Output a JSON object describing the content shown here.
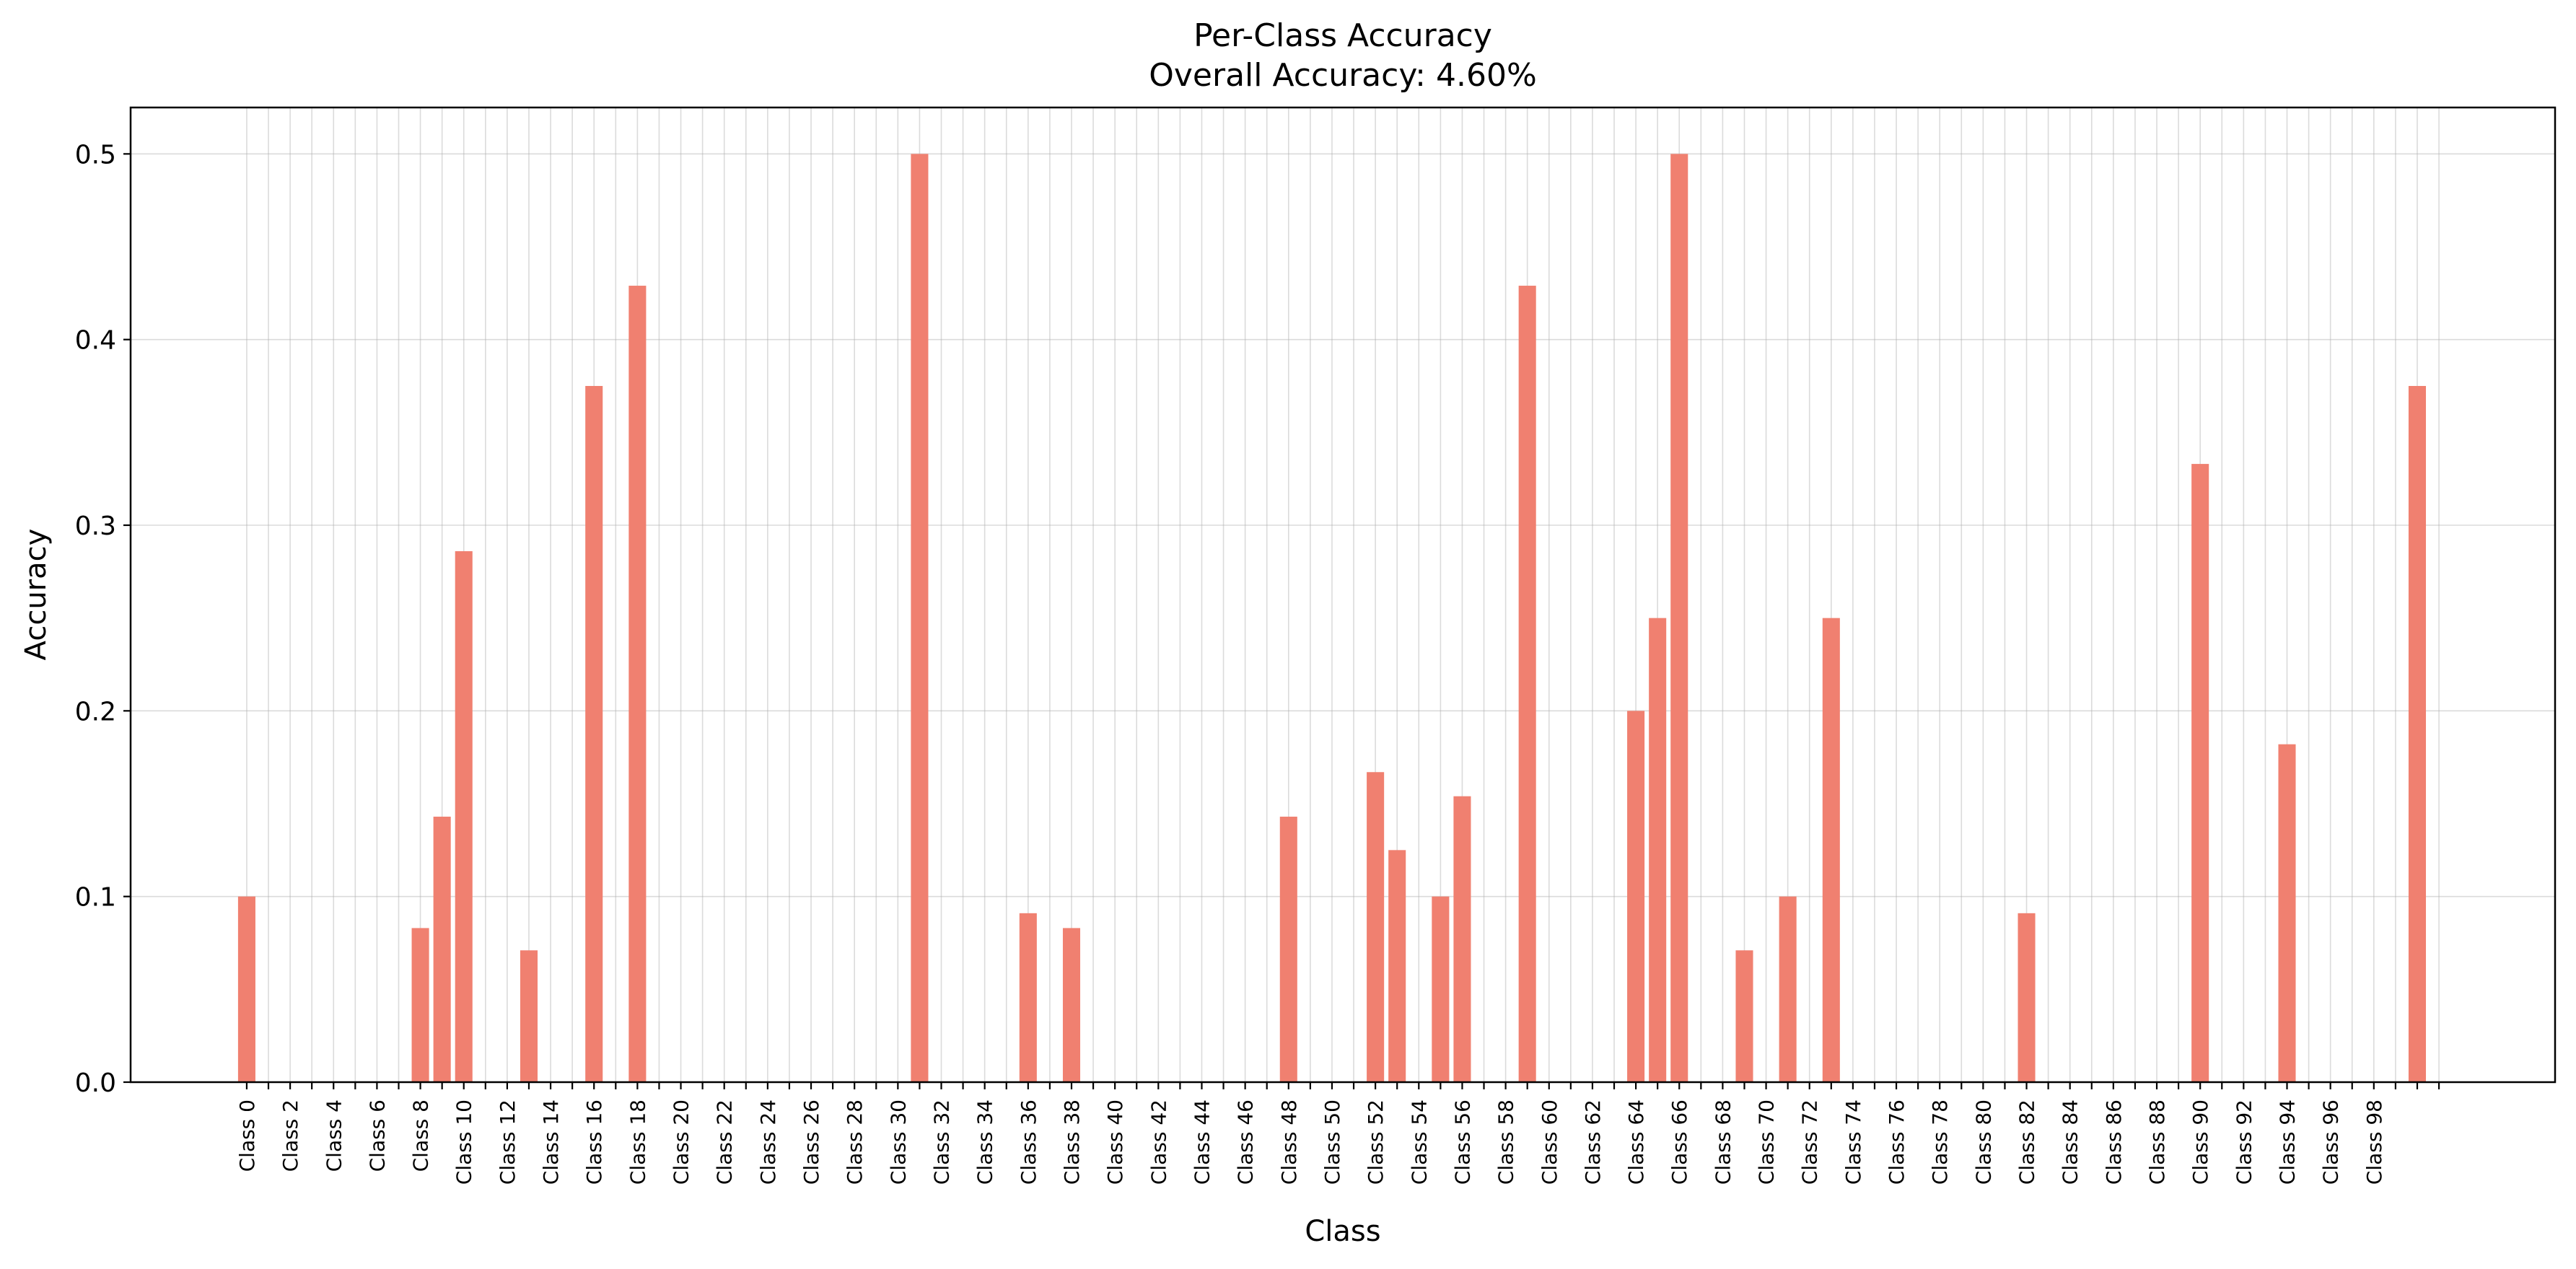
{
  "chart_data": {
    "type": "bar",
    "title": "Per-Class Accuracy",
    "subtitle": "Overall Accuracy: 4.60%",
    "xlabel": "Class",
    "ylabel": "Accuracy",
    "ylim": [
      0,
      0.525
    ],
    "yticks": [
      0.0,
      0.1,
      0.2,
      0.3,
      0.4,
      0.5
    ],
    "ytick_labels": [
      "0.0",
      "0.1",
      "0.2",
      "0.3",
      "0.4",
      "0.5"
    ],
    "xtick_labels": [
      "Class 0",
      "Class 2",
      "Class 4",
      "Class 6",
      "Class 8",
      "Class 10",
      "Class 12",
      "Class 14",
      "Class 16",
      "Class 18",
      "Class 20",
      "Class 22",
      "Class 24",
      "Class 26",
      "Class 28",
      "Class 30",
      "Class 32",
      "Class 34",
      "Class 36",
      "Class 38",
      "Class 40",
      "Class 42",
      "Class 44",
      "Class 46",
      "Class 48",
      "Class 50",
      "Class 52",
      "Class 54",
      "Class 56",
      "Class 58",
      "Class 60",
      "Class 62",
      "Class 64",
      "Class 66",
      "Class 68",
      "Class 70",
      "Class 72",
      "Class 74",
      "Class 76",
      "Class 78",
      "Class 80",
      "Class 82",
      "Class 84",
      "Class 86",
      "Class 88",
      "Class 90",
      "Class 92",
      "Class 94",
      "Class 96",
      "Class 98"
    ],
    "grid": true,
    "bar_color": "#f08070",
    "values": [
      0.1,
      0,
      0,
      0,
      0,
      0,
      0,
      0,
      0.083,
      0.143,
      0.286,
      0,
      0,
      0.071,
      0,
      0,
      0.375,
      0,
      0.429,
      0,
      0,
      0,
      0,
      0,
      0,
      0,
      0,
      0,
      0,
      0,
      0,
      0.5,
      0,
      0,
      0,
      0,
      0.091,
      0,
      0.083,
      0,
      0,
      0,
      0,
      0,
      0,
      0,
      0,
      0,
      0.143,
      0,
      0,
      0,
      0.167,
      0.125,
      0,
      0.1,
      0.154,
      0,
      0,
      0.429,
      0,
      0,
      0,
      0,
      0.2,
      0.25,
      0.5,
      0,
      0,
      0.071,
      0,
      0.1,
      0,
      0.25,
      0,
      0,
      0,
      0,
      0,
      0,
      0,
      0,
      0.091,
      0,
      0,
      0,
      0,
      0,
      0,
      0,
      0.333,
      0,
      0,
      0,
      0.182,
      0,
      0,
      0,
      0,
      0,
      0.375,
      0
    ]
  }
}
